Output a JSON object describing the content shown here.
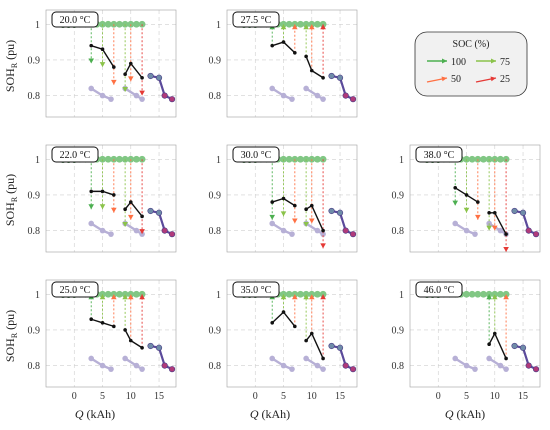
{
  "figure": {
    "ylabel_main": "SOH",
    "ylabel_sub": "R",
    "ylabel_unit": " (pu)",
    "xlabel_var": "Q",
    "xlabel_unit": " (kAh)"
  },
  "legend": {
    "title": "SOC (%)",
    "entries": [
      {
        "label": "100",
        "color": "#4caf50"
      },
      {
        "label": "75",
        "color": "#8bc34a"
      },
      {
        "label": "50",
        "color": "#ff7043"
      },
      {
        "label": "25",
        "color": "#e53935"
      }
    ]
  },
  "chart_data": [
    {
      "type": "line",
      "temp": "20.0 °C",
      "col": 0,
      "row": 0,
      "xlim": [
        -5,
        18
      ],
      "ylim": [
        0.74,
        1.04
      ],
      "xticks": [
        0,
        5,
        10,
        15
      ],
      "yticks": [
        1,
        0.9,
        0.8
      ],
      "series": [
        {
          "name": "",
          "x": [
            3,
            5,
            7
          ],
          "y": [
            0.94,
            0.93,
            0.88
          ]
        },
        {
          "name": "",
          "x": [
            9,
            10,
            12
          ],
          "y": [
            0.86,
            0.89,
            0.85
          ]
        }
      ]
    },
    {
      "type": "line",
      "temp": "27.5 °C",
      "col": 1,
      "row": 0,
      "xlim": [
        -5,
        18
      ],
      "ylim": [
        0.74,
        1.04
      ],
      "xticks": [
        0,
        5,
        10,
        15
      ],
      "yticks": [
        1,
        0.9,
        0.8
      ],
      "series": [
        {
          "name": "",
          "x": [
            3,
            5,
            7
          ],
          "y": [
            0.94,
            0.95,
            0.92
          ]
        },
        {
          "name": "",
          "x": [
            9,
            10,
            12
          ],
          "y": [
            0.91,
            0.87,
            0.85
          ]
        }
      ]
    },
    {
      "type": "line",
      "temp": "22.0 °C",
      "col": 0,
      "row": 1,
      "xlim": [
        -5,
        18
      ],
      "ylim": [
        0.74,
        1.04
      ],
      "xticks": [
        0,
        5,
        10,
        15
      ],
      "yticks": [
        1,
        0.9,
        0.8
      ],
      "series": [
        {
          "name": "",
          "x": [
            3,
            5,
            7
          ],
          "y": [
            0.91,
            0.91,
            0.9
          ]
        },
        {
          "name": "",
          "x": [
            9,
            10,
            12
          ],
          "y": [
            0.86,
            0.88,
            0.84
          ]
        }
      ]
    },
    {
      "type": "line",
      "temp": "30.0 °C",
      "col": 1,
      "row": 1,
      "xlim": [
        -5,
        18
      ],
      "ylim": [
        0.74,
        1.04
      ],
      "xticks": [
        0,
        5,
        10,
        15
      ],
      "yticks": [
        1,
        0.9,
        0.8
      ],
      "series": [
        {
          "name": "",
          "x": [
            3,
            5,
            7
          ],
          "y": [
            0.88,
            0.89,
            0.87
          ]
        },
        {
          "name": "",
          "x": [
            9,
            10,
            12
          ],
          "y": [
            0.86,
            0.87,
            0.8
          ]
        }
      ]
    },
    {
      "type": "line",
      "temp": "38.0 °C",
      "col": 2,
      "row": 1,
      "xlim": [
        -5,
        18
      ],
      "ylim": [
        0.74,
        1.04
      ],
      "xticks": [
        0,
        5,
        10,
        15
      ],
      "yticks": [
        1,
        0.9,
        0.8
      ],
      "series": [
        {
          "name": "",
          "x": [
            3,
            5,
            7
          ],
          "y": [
            0.92,
            0.9,
            0.88
          ]
        },
        {
          "name": "",
          "x": [
            9,
            10,
            12
          ],
          "y": [
            0.85,
            0.85,
            0.79
          ]
        }
      ]
    },
    {
      "type": "line",
      "temp": "25.0 °C",
      "col": 0,
      "row": 2,
      "xlim": [
        -5,
        18
      ],
      "ylim": [
        0.74,
        1.04
      ],
      "xticks": [
        0,
        5,
        10,
        15
      ],
      "yticks": [
        1,
        0.9,
        0.8
      ],
      "series": [
        {
          "name": "",
          "x": [
            3,
            5,
            7
          ],
          "y": [
            0.93,
            0.92,
            0.91
          ]
        },
        {
          "name": "",
          "x": [
            9,
            10,
            12
          ],
          "y": [
            0.9,
            0.87,
            0.85
          ]
        }
      ]
    },
    {
      "type": "line",
      "temp": "35.0 °C",
      "col": 1,
      "row": 2,
      "xlim": [
        -5,
        18
      ],
      "ylim": [
        0.74,
        1.04
      ],
      "xticks": [
        0,
        5,
        10,
        15
      ],
      "yticks": [
        1,
        0.9,
        0.8
      ],
      "series": [
        {
          "name": "",
          "x": [
            3,
            5,
            7
          ],
          "y": [
            0.92,
            0.95,
            0.91
          ]
        },
        {
          "name": "",
          "x": [
            9,
            10,
            12
          ],
          "y": [
            0.87,
            0.89,
            0.82
          ]
        }
      ]
    },
    {
      "type": "line",
      "temp": "46.0 °C",
      "col": 2,
      "row": 2,
      "xlim": [
        -5,
        18
      ],
      "ylim": [
        0.74,
        1.04
      ],
      "xticks": [
        0,
        5,
        10,
        15
      ],
      "yticks": [
        1,
        0.9,
        0.8
      ],
      "series": [
        {
          "name": "",
          "x": [
            9,
            10,
            12
          ],
          "y": [
            0.86,
            0.89,
            0.82
          ]
        }
      ]
    }
  ]
}
